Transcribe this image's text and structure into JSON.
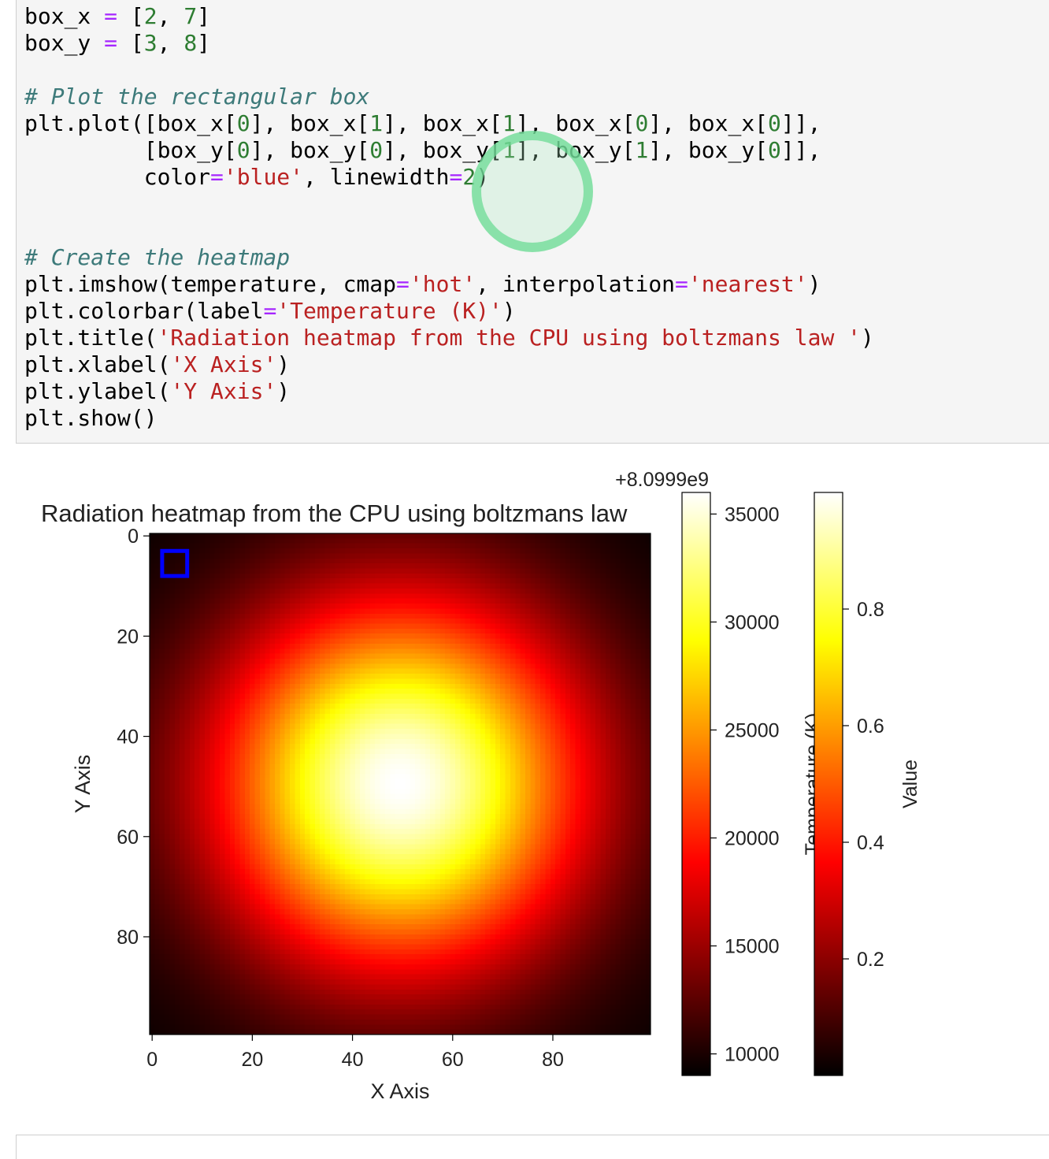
{
  "code_lines": [
    [
      [
        "txt",
        "box_x "
      ],
      [
        "op",
        "="
      ],
      [
        "txt",
        " ["
      ],
      [
        "num",
        "2"
      ],
      [
        "txt",
        ", "
      ],
      [
        "num",
        "7"
      ],
      [
        "txt",
        "]"
      ]
    ],
    [
      [
        "txt",
        "box_y "
      ],
      [
        "op",
        "="
      ],
      [
        "txt",
        " ["
      ],
      [
        "num",
        "3"
      ],
      [
        "txt",
        ", "
      ],
      [
        "num",
        "8"
      ],
      [
        "txt",
        "]"
      ]
    ],
    [],
    [
      [
        "com",
        "# Plot the rectangular box"
      ]
    ],
    [
      [
        "txt",
        "plt.plot([box_x["
      ],
      [
        "num",
        "0"
      ],
      [
        "txt",
        "], box_x["
      ],
      [
        "num",
        "1"
      ],
      [
        "txt",
        "], box_x["
      ],
      [
        "num",
        "1"
      ],
      [
        "txt",
        "], box_x["
      ],
      [
        "num",
        "0"
      ],
      [
        "txt",
        "], box_x["
      ],
      [
        "num",
        "0"
      ],
      [
        "txt",
        "]],"
      ]
    ],
    [
      [
        "txt",
        "         [box_y["
      ],
      [
        "num",
        "0"
      ],
      [
        "txt",
        "], box_y["
      ],
      [
        "num",
        "0"
      ],
      [
        "txt",
        "], box_y["
      ],
      [
        "num",
        "1"
      ],
      [
        "txt",
        "], box_y["
      ],
      [
        "num",
        "1"
      ],
      [
        "txt",
        "], box_y["
      ],
      [
        "num",
        "0"
      ],
      [
        "txt",
        "]],"
      ]
    ],
    [
      [
        "txt",
        "         color"
      ],
      [
        "op",
        "="
      ],
      [
        "str",
        "'blue'"
      ],
      [
        "txt",
        ", linewidth"
      ],
      [
        "op",
        "="
      ],
      [
        "num",
        "2"
      ],
      [
        "txt",
        ")"
      ]
    ],
    [],
    [],
    [
      [
        "com",
        "# Create the heatmap"
      ]
    ],
    [
      [
        "txt",
        "plt.imshow(temperature, cmap"
      ],
      [
        "op",
        "="
      ],
      [
        "str",
        "'hot'"
      ],
      [
        "txt",
        ", interpolation"
      ],
      [
        "op",
        "="
      ],
      [
        "str",
        "'nearest'"
      ],
      [
        "txt",
        ")"
      ]
    ],
    [
      [
        "txt",
        "plt.colorbar(label"
      ],
      [
        "op",
        "="
      ],
      [
        "str",
        "'Temperature (K)'"
      ],
      [
        "txt",
        ")"
      ]
    ],
    [
      [
        "txt",
        "plt.title("
      ],
      [
        "str",
        "'Radiation heatmap from the CPU using boltzmans law '"
      ],
      [
        "txt",
        ")"
      ]
    ],
    [
      [
        "txt",
        "plt.xlabel("
      ],
      [
        "str",
        "'X Axis'"
      ],
      [
        "txt",
        ")"
      ]
    ],
    [
      [
        "txt",
        "plt.ylabel("
      ],
      [
        "str",
        "'Y Axis'"
      ],
      [
        "txt",
        ")"
      ]
    ],
    [
      [
        "txt",
        "plt.show()"
      ]
    ]
  ],
  "colors": {
    "number": "#2e7d32",
    "operator": "#a626ff",
    "string": "#ba2121",
    "comment": "#3d7a7a",
    "box": "#0000ff"
  },
  "chart_data": {
    "type": "heatmap",
    "title": "Radiation heatmap from the CPU using boltzmans law",
    "xlabel": "X Axis",
    "ylabel": "Y Axis",
    "cmap": "hot",
    "grid_size": [
      100,
      100
    ],
    "x_ticks": [
      0,
      20,
      40,
      60,
      80
    ],
    "y_ticks": [
      0,
      20,
      40,
      60,
      80
    ],
    "peak_center": [
      50,
      50
    ],
    "box": {
      "x": [
        2,
        7
      ],
      "y": [
        3,
        8
      ],
      "color": "blue"
    },
    "colorbars": [
      {
        "label": "Temperature (K)",
        "offset_text": "+8.0999e9",
        "range": [
          9000,
          36000
        ],
        "ticks": [
          10000,
          15000,
          20000,
          25000,
          30000,
          35000
        ],
        "tick_labels": [
          "10000",
          "15000",
          "20000",
          "25000",
          "30000",
          "35000"
        ]
      },
      {
        "label": "Value",
        "range": [
          0,
          1
        ],
        "ticks": [
          0.2,
          0.4,
          0.6,
          0.8
        ],
        "tick_labels": [
          "0.2",
          "0.4",
          "0.6",
          "0.8"
        ]
      }
    ]
  }
}
